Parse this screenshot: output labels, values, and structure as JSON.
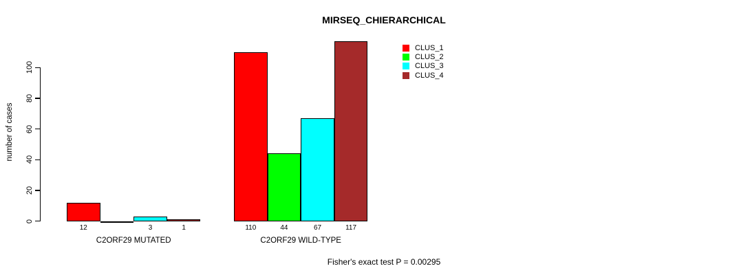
{
  "figure": {
    "title": "MIRSEQ_CHIERARCHICAL",
    "ylabel": "number of cases",
    "footer": "Fisher's exact test P = 0.00295"
  },
  "chart_data": {
    "type": "bar",
    "title": "MIRSEQ_CHIERARCHICAL",
    "xlabel": "",
    "ylabel": "number of cases",
    "yticks": [
      0,
      20,
      40,
      60,
      80,
      100
    ],
    "ylim": [
      0,
      120
    ],
    "grid": false,
    "legend_position": "top-right-inside",
    "series": [
      {
        "name": "CLUS_1",
        "color": "#ff0000"
      },
      {
        "name": "CLUS_2",
        "color": "#00ff00"
      },
      {
        "name": "CLUS_3",
        "color": "#00ffff"
      },
      {
        "name": "CLUS_4",
        "color": "#a52a2a"
      }
    ],
    "groups": [
      {
        "label": "C2ORF29 MUTATED",
        "values": [
          12,
          0,
          3,
          1
        ],
        "value_labels": [
          "12",
          "",
          "3",
          "1"
        ]
      },
      {
        "label": "C2ORF29 WILD-TYPE",
        "values": [
          110,
          44,
          67,
          117
        ],
        "value_labels": [
          "110",
          "44",
          "67",
          "117"
        ]
      }
    ],
    "annotation": "Fisher's exact test P = 0.00295",
    "bar_border_color": "#000000",
    "text_color": "#000000"
  }
}
